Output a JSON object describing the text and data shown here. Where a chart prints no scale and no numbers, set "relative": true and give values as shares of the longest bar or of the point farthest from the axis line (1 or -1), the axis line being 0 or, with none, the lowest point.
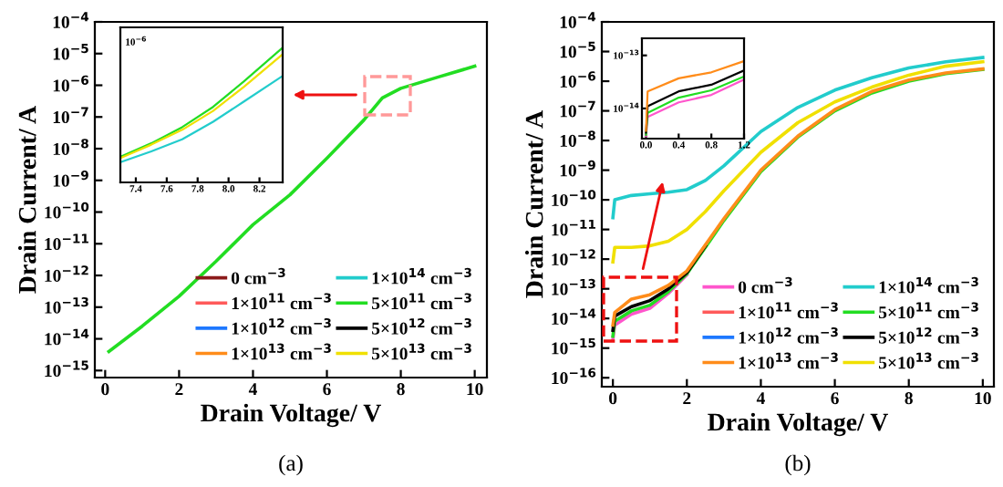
{
  "chart_data": [
    {
      "type": "line",
      "xlabel": "Drain Voltage/ V",
      "ylabel": "Drain Current/ A",
      "log": "y",
      "legend": "bottom right",
      "annotations": [
        "(a)"
      ],
      "xlim": [
        -0.28,
        10.33
      ],
      "xticks": [
        0,
        2,
        4,
        6,
        8,
        10
      ],
      "ylim": [
        6e-16,
        0.0001
      ],
      "yticks": [
        {
          "value": 1e-15,
          "label": "10$^{−15}$"
        },
        {
          "value": 1e-14,
          "label": "10$^{−14}$"
        },
        {
          "value": 1e-13,
          "label": "10$^{−13}$"
        },
        {
          "value": 1e-12,
          "label": "10$^{−12}$"
        },
        {
          "value": 1e-11,
          "label": "10$^{−11}$"
        },
        {
          "value": 1e-10,
          "label": "10$^{−10}$"
        },
        {
          "value": 1e-09,
          "label": "10$^{−9}$"
        },
        {
          "value": 1e-08,
          "label": "10$^{−8}$"
        },
        {
          "value": 1e-07,
          "label": "10$^{−7}$"
        },
        {
          "value": 1e-06,
          "label": "10$^{−6}$"
        },
        {
          "value": 1e-05,
          "label": "10$^{−5}$"
        },
        {
          "value": 0.0001,
          "label": "10$^{−4}$"
        }
      ],
      "x": [
        0.1,
        1,
        2,
        3,
        4,
        5,
        6,
        7,
        7.5,
        8,
        9,
        10
      ],
      "series": [
        {
          "name": "0 cm$^{−3}$",
          "color": "#8b1a1a",
          "values": [
            null,
            null,
            null,
            null,
            null,
            null,
            null,
            null,
            null,
            null,
            null,
            null
          ]
        },
        {
          "name": "1×10$^{11}$ cm$^{−3}$",
          "color": "#ff5a5a",
          "values": [
            null,
            null,
            null,
            null,
            null,
            null,
            null,
            null,
            null,
            null,
            null,
            null
          ]
        },
        {
          "name": "5×10$^{11}$ cm$^{−3}$",
          "color": "#22dd22",
          "values": [
            4e-15,
            2.5e-14,
            2.2e-13,
            2.8e-12,
            4e-11,
            3.5e-10,
            5e-09,
            8e-08,
            4e-07,
            8e-07,
            1.8e-06,
            4e-06
          ]
        },
        {
          "name": "1×10$^{12}$ cm$^{−3}$",
          "color": "#1e78ff",
          "values": [
            null,
            null,
            null,
            null,
            null,
            null,
            null,
            null,
            null,
            null,
            null,
            null
          ]
        },
        {
          "name": "5×10$^{12}$ cm$^{−3}$",
          "color": "#000000",
          "values": [
            null,
            null,
            null,
            null,
            null,
            null,
            null,
            null,
            null,
            null,
            null,
            null
          ]
        },
        {
          "name": "1×10$^{13}$ cm$^{−3}$",
          "color": "#ff8c1a",
          "values": [
            null,
            null,
            null,
            null,
            null,
            null,
            null,
            null,
            null,
            null,
            null,
            null
          ]
        },
        {
          "name": "5×10$^{13}$ cm$^{−3}$",
          "color": "#f0e000",
          "values": [
            null,
            null,
            null,
            null,
            null,
            null,
            null,
            null,
            null,
            null,
            null,
            null
          ]
        },
        {
          "name": "1×10$^{14}$ cm$^{−3}$",
          "color": "#22cccc",
          "values": [
            null,
            null,
            null,
            null,
            null,
            null,
            null,
            null,
            null,
            null,
            null,
            null
          ]
        }
      ]
    },
    {
      "type": "line",
      "relative": true,
      "annotations": [
        "10$^{−6}$"
      ],
      "xlim": [
        7.3,
        8.35
      ],
      "xticks": [
        7.4,
        7.6,
        7.8,
        {
          "value": 8.0,
          "label": "8.0"
        },
        8.2
      ],
      "x": [
        7.3,
        7.5,
        7.7,
        7.9,
        8.1,
        8.35
      ],
      "series": [
        {
          "color": "#22dd22",
          "values": [
            0.19,
            0.29,
            0.41,
            0.56,
            0.75,
            1
          ]
        },
        {
          "color": "#f0e000",
          "values": [
            0.18,
            0.28,
            0.39,
            0.53,
            0.71,
            0.95
          ]
        },
        {
          "color": "#22cccc",
          "values": [
            0.15,
            0.23,
            0.32,
            0.45,
            0.6,
            0.79
          ]
        }
      ]
    },
    {
      "type": "line",
      "xlabel": "Drain Voltage/ V",
      "ylabel": "Drain Current/ A",
      "log": "y",
      "legend": "bottom right",
      "annotations": [
        "(b)"
      ],
      "xlim": [
        -0.3,
        10.3
      ],
      "xticks": [
        0,
        2,
        4,
        6,
        8,
        10
      ],
      "ylim": [
        5e-17,
        0.0001
      ],
      "yticks": [
        {
          "value": 1e-16,
          "label": "10$^{−16}$"
        },
        {
          "value": 1e-15,
          "label": "10$^{−15}$"
        },
        {
          "value": 1e-14,
          "label": "10$^{−14}$"
        },
        {
          "value": 1e-13,
          "label": "10$^{−13}$"
        },
        {
          "value": 1e-12,
          "label": "10$^{−12}$"
        },
        {
          "value": 1e-11,
          "label": "10$^{−11}$"
        },
        {
          "value": 1e-10,
          "label": "10$^{−10}$"
        },
        {
          "value": 1e-09,
          "label": "10$^{−9}$"
        },
        {
          "value": 1e-08,
          "label": "10$^{−8}$"
        },
        {
          "value": 1e-07,
          "label": "10$^{−7}$"
        },
        {
          "value": 1e-06,
          "label": "10$^{−6}$"
        },
        {
          "value": 1e-05,
          "label": "10$^{−5}$"
        },
        {
          "value": 0.0001,
          "label": "10$^{−4}$"
        }
      ],
      "x": [
        0,
        0.05,
        0.5,
        1,
        1.5,
        2,
        2.5,
        3,
        4,
        5,
        6,
        7,
        8,
        9,
        10
      ],
      "series": [
        {
          "name": "0 cm$^{−3}$",
          "color": "#ff55cc",
          "values": [
            2e-15,
            6e-15,
            1.4e-14,
            2.2e-14,
            7e-14,
            3e-13,
            null,
            null,
            null,
            null,
            null,
            null,
            null,
            null,
            null
          ]
        },
        {
          "name": "1×10$^{11}$ cm$^{−3}$",
          "color": "#ff5a5a",
          "values": [
            null,
            null,
            null,
            null,
            null,
            null,
            null,
            null,
            null,
            null,
            null,
            null,
            null,
            null,
            null
          ]
        },
        {
          "name": "5×10$^{11}$ cm$^{−3}$",
          "color": "#22dd22",
          "values": [
            2.5e-15,
            8e-15,
            1.8e-14,
            2.8e-14,
            8e-14,
            3.2e-13,
            2.5e-12,
            2e-11,
            9e-10,
            1.3e-08,
            1e-07,
            4e-07,
            1e-06,
            1.8e-06,
            2.5e-06
          ]
        },
        {
          "name": "1×10$^{12}$ cm$^{−3}$",
          "color": "#1e78ff",
          "values": [
            null,
            null,
            null,
            null,
            null,
            null,
            null,
            null,
            null,
            null,
            null,
            null,
            null,
            null,
            null
          ]
        },
        {
          "name": "5×10$^{12}$ cm$^{−3}$",
          "color": "#000000",
          "values": [
            4e-15,
            1.2e-14,
            2.5e-14,
            4e-14,
            1e-13,
            3.5e-13,
            2.8e-12,
            null,
            null,
            null,
            null,
            null,
            null,
            null,
            null
          ]
        },
        {
          "name": "1×10$^{13}$ cm$^{−3}$",
          "color": "#ff8c1a",
          "values": [
            6e-15,
            1.6e-14,
            4.5e-14,
            6.3e-14,
            1.3e-13,
            4e-13,
            3e-12,
            2.3e-11,
            1e-09,
            1.4e-08,
            1.1e-07,
            4.5e-07,
            1.1e-06,
            1.9e-06,
            2.6e-06
          ]
        },
        {
          "name": "5×10$^{13}$ cm$^{−3}$",
          "color": "#f0e000",
          "values": [
            8e-13,
            2.5e-12,
            2.5e-12,
            2.8e-12,
            4e-12,
            1e-11,
            4e-11,
            2e-10,
            4e-09,
            4e-08,
            2e-07,
            6.3e-07,
            1.6e-06,
            3.2e-06,
            4.5e-06
          ]
        },
        {
          "name": "1×10$^{14}$ cm$^{−3}$",
          "color": "#22cccc",
          "values": [
            2.5e-11,
            1e-10,
            1.4e-10,
            1.6e-10,
            1.8e-10,
            2.2e-10,
            4.5e-10,
            1.4e-09,
            2e-08,
            1.3e-07,
            5e-07,
            1.3e-06,
            2.8e-06,
            4.5e-06,
            6.3e-06
          ]
        }
      ]
    },
    {
      "type": "line",
      "log": "y",
      "xlim": [
        -0.05,
        1.2
      ],
      "xticks": [
        {
          "value": 0,
          "label": "0.0"
        },
        0.4,
        0.8,
        1.2
      ],
      "ylim": [
        2.7e-15,
        2.1e-13
      ],
      "yticks": [
        {
          "value": 1e-14,
          "label": "10$^{−14}$"
        },
        {
          "value": 1e-13,
          "label": "10$^{−13}$"
        }
      ],
      "x": [
        0,
        0.02,
        0.4,
        0.8,
        1.2
      ],
      "series": [
        {
          "color": "#ff55cc",
          "values": [
            3e-15,
            6.9e-15,
            1.3e-14,
            1.8e-14,
            3.5e-14
          ]
        },
        {
          "color": "#22dd22",
          "values": [
            3.2e-15,
            8.3e-15,
            1.6e-14,
            2.2e-14,
            4e-14
          ]
        },
        {
          "color": "#000000",
          "values": [
            3.5e-15,
            1.1e-14,
            2.1e-14,
            2.8e-14,
            5.2e-14
          ]
        },
        {
          "color": "#ff8c1a",
          "values": [
            3.8e-15,
            2.1e-14,
            3.7e-14,
            4.8e-14,
            7.8e-14
          ]
        }
      ]
    }
  ]
}
